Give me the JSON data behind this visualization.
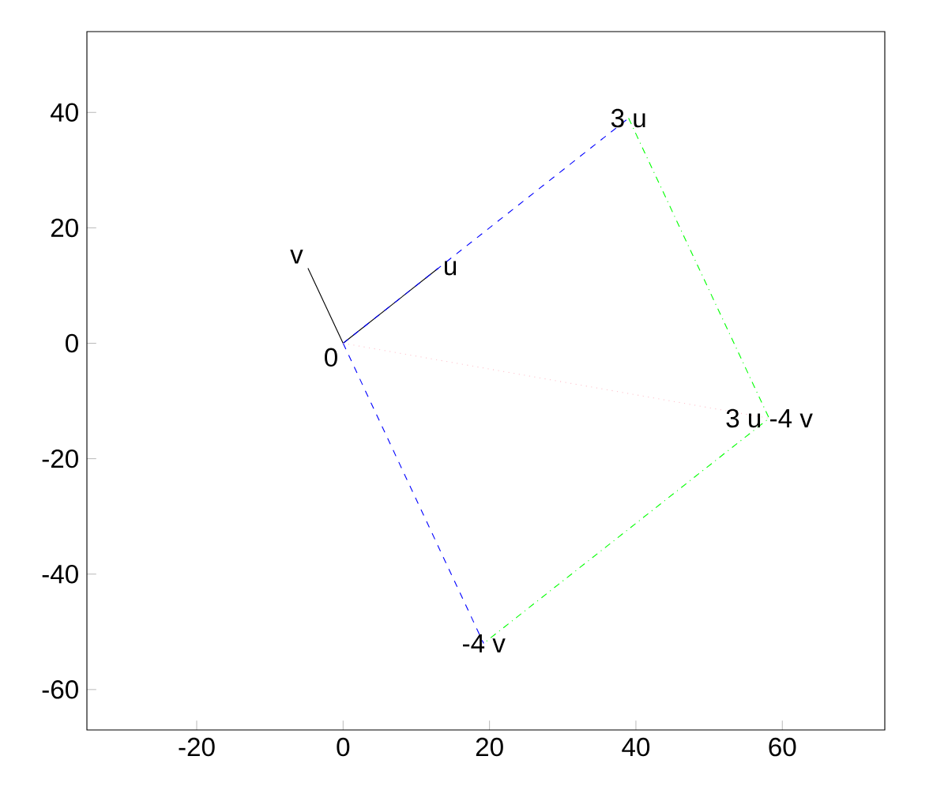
{
  "chart_data": {
    "type": "line",
    "xlim": [
      -35,
      74
    ],
    "ylim": [
      -67,
      54
    ],
    "xticks": [
      -20,
      0,
      20,
      40,
      60
    ],
    "yticks": [
      -60,
      -40,
      -20,
      0,
      20,
      40
    ],
    "grid": false,
    "series": [
      {
        "color": "#000000",
        "x": [
          0,
          13
        ],
        "values": [
          0,
          13
        ],
        "line_style": "solid"
      },
      {
        "color": "#000000",
        "x": [
          0,
          -4.8
        ],
        "values": [
          0,
          13
        ],
        "line_style": "solid"
      },
      {
        "color": "#0000ff",
        "x": [
          0,
          39
        ],
        "values": [
          0,
          39
        ],
        "line_style": "dashed"
      },
      {
        "color": "#0000ff",
        "x": [
          0,
          19.2
        ],
        "values": [
          0,
          -52
        ],
        "line_style": "dashed"
      },
      {
        "color": "#00ff00",
        "x": [
          39,
          58.2,
          19.2
        ],
        "values": [
          39,
          -13,
          -52
        ],
        "line_style": "dashdot"
      },
      {
        "color": "#ffc0cb",
        "x": [
          0,
          58.2
        ],
        "values": [
          0,
          -13
        ],
        "line_style": "dotted"
      }
    ],
    "annotations": [
      {
        "text": "0",
        "x": 0,
        "y": 0
      },
      {
        "text": "u",
        "x": 13,
        "y": 13
      },
      {
        "text": "v",
        "x": -4.8,
        "y": 13
      },
      {
        "text": "3 u",
        "x": 39,
        "y": 39
      },
      {
        "text": "-4 v",
        "x": 19.2,
        "y": -52
      },
      {
        "text": "3 u -4 v",
        "x": 58.2,
        "y": -13
      }
    ]
  }
}
